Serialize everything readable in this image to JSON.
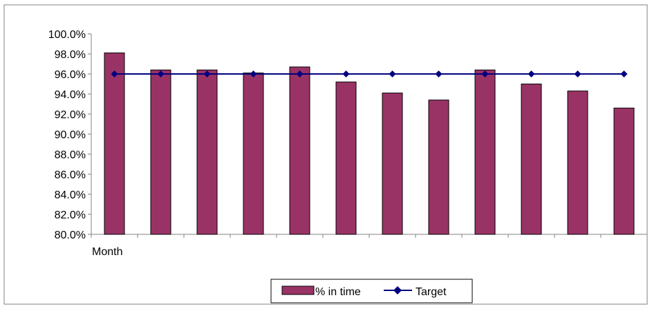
{
  "chart_data": {
    "type": "bar",
    "title": "",
    "xlabel": "Month",
    "ylabel": "",
    "ylim": [
      80.0,
      100.0
    ],
    "ytick_step": 2.0,
    "y_tick_format": "percent_1dp",
    "categories": [
      "",
      "",
      "",
      "",
      "",
      "",
      "",
      "",
      "",
      "",
      "",
      ""
    ],
    "series": [
      {
        "name": "% in time",
        "kind": "bar",
        "color": "#993366",
        "values": [
          98.1,
          96.4,
          96.4,
          96.1,
          96.7,
          95.2,
          94.1,
          93.4,
          96.4,
          95.0,
          94.3,
          92.6
        ]
      },
      {
        "name": "Target",
        "kind": "line",
        "color": "#000080",
        "marker": "diamond",
        "values": [
          96.0,
          96.0,
          96.0,
          96.0,
          96.0,
          96.0,
          96.0,
          96.0,
          96.0,
          96.0,
          96.0,
          96.0
        ]
      }
    ],
    "grid": false,
    "legend_position": "bottom"
  },
  "colors": {
    "border": "#808080",
    "axis": "#808080"
  }
}
